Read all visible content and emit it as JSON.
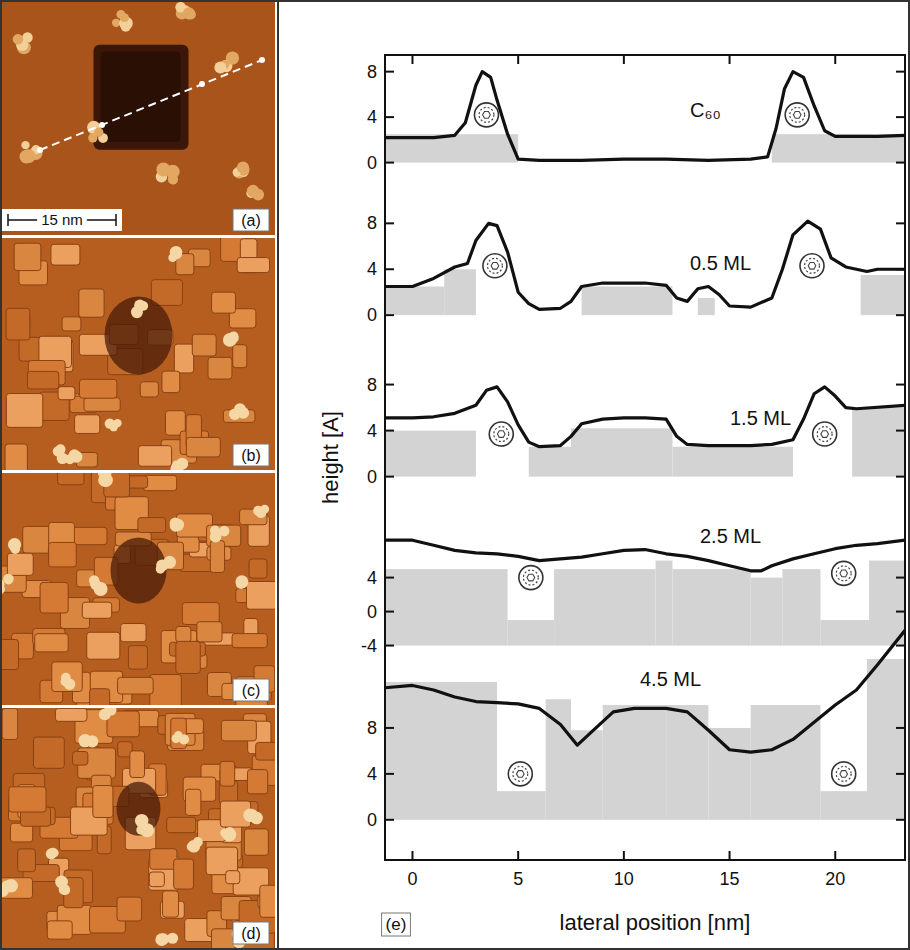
{
  "images": [
    {
      "label": "(a)",
      "scale_bar": "15 nm"
    },
    {
      "label": "(b)"
    },
    {
      "label": "(c)"
    },
    {
      "label": "(d)"
    }
  ],
  "ylabel": "height [A]",
  "panel_label": "(e)",
  "chart_data": [
    {
      "type": "line",
      "title": "C₆₀",
      "color": "#111111",
      "tick_labels": "y",
      "xlim": [
        -1.3,
        23.3
      ],
      "ylim": [
        -2.5,
        9.2
      ],
      "yticks": [
        0,
        4,
        8
      ],
      "x": [
        -1.3,
        0,
        1,
        2,
        2.5,
        3,
        3.3,
        3.7,
        4,
        4.5,
        5,
        6,
        8,
        10,
        12,
        14,
        16,
        16.8,
        17.2,
        17.6,
        18,
        18.5,
        19,
        19.5,
        20,
        22,
        23.3
      ],
      "values": [
        2.2,
        2.2,
        2.2,
        2.4,
        3.5,
        6.8,
        8,
        7.5,
        5.5,
        2.5,
        0.3,
        0.2,
        0.2,
        0.3,
        0.3,
        0.2,
        0.3,
        0.5,
        3,
        6.5,
        8,
        7.5,
        5,
        2.8,
        2.3,
        2.3,
        2.4
      ],
      "layers": {
        "edges": [
          -1.3,
          5,
          17,
          23.3
        ],
        "heights": [
          2.5,
          0,
          2.5
        ],
        "base": 0
      },
      "molecules": {
        "x": [
          3.5,
          18.2
        ],
        "y": [
          4.2,
          4.2
        ]
      }
    },
    {
      "type": "line",
      "title": "0.5 ML",
      "color": "#111111",
      "tick_labels": "y",
      "xlim": [
        -1.3,
        23.3
      ],
      "ylim": [
        -2.6,
        9.6
      ],
      "yticks": [
        0,
        4,
        8
      ],
      "x": [
        -1.3,
        0,
        1,
        2,
        2.6,
        3,
        3.6,
        4,
        4.5,
        5,
        5.5,
        6,
        7,
        7.5,
        8,
        9,
        10,
        11,
        12,
        12.5,
        13,
        13.5,
        14,
        14.5,
        15,
        16,
        17,
        17.5,
        18,
        18.7,
        19.3,
        19.8,
        20.5,
        21.5,
        22,
        23.3
      ],
      "values": [
        2.5,
        2.5,
        3.2,
        4.2,
        4.5,
        6.5,
        8,
        7.8,
        5.5,
        2,
        1,
        0.5,
        0.6,
        1.2,
        2.5,
        2.8,
        2.8,
        2.8,
        2.6,
        1.5,
        1.2,
        2.3,
        2.5,
        1.8,
        0.8,
        0.7,
        1.5,
        4,
        7,
        8.2,
        7.5,
        5,
        4.2,
        3.8,
        4,
        4
      ],
      "layers": {
        "edges": [
          -1.3,
          1.5,
          3,
          8,
          12.3,
          13.5,
          14.3,
          21.2,
          23.3
        ],
        "heights": [
          2.5,
          4,
          0,
          2.5,
          0,
          1.5,
          0,
          3.5
        ],
        "base": 0
      },
      "molecules": {
        "x": [
          3.9,
          18.9
        ],
        "y": [
          4.3,
          4.3
        ]
      }
    },
    {
      "type": "line",
      "title": "1.5 ML",
      "color": "#111111",
      "tick_labels": "y",
      "xlim": [
        -1.3,
        23.3
      ],
      "ylim": [
        -2.9,
        9.7
      ],
      "yticks": [
        0,
        4,
        8
      ],
      "x": [
        -1.3,
        0,
        1,
        2,
        3,
        3.5,
        4,
        4.5,
        5,
        5.5,
        6,
        7,
        7.5,
        8,
        9,
        10,
        11,
        12,
        12.5,
        13,
        14,
        16,
        17,
        18,
        18.5,
        19,
        19.5,
        20,
        20.5,
        21,
        23.3
      ],
      "values": [
        5.1,
        5.1,
        5.2,
        5.5,
        6.2,
        7.5,
        7.8,
        6.5,
        4.5,
        3,
        2.6,
        2.7,
        3.5,
        4.6,
        5,
        5.1,
        5.1,
        5,
        3.5,
        2.8,
        2.7,
        2.7,
        2.8,
        3.2,
        5,
        7.2,
        7.8,
        7,
        6,
        5.9,
        6.2
      ],
      "layers": {
        "edges": [
          -1.3,
          3,
          5.5,
          7.5,
          12.3,
          18,
          20.8,
          23.3
        ],
        "heights": [
          4,
          0,
          2.6,
          4.2,
          2.6,
          0,
          6
        ],
        "base": 0
      },
      "molecules": {
        "x": [
          4.2,
          19.5
        ],
        "y": [
          3.7,
          3.7
        ]
      }
    },
    {
      "type": "line",
      "title": "2.5 ML",
      "color": "#111111",
      "tick_labels": "y",
      "xlim": [
        -1.3,
        23.3
      ],
      "ylim": [
        -5.7,
        9.6
      ],
      "yticks": [
        -4,
        0,
        4
      ],
      "x": [
        -1.3,
        0,
        1,
        2,
        3,
        4,
        5,
        6,
        7,
        8,
        9,
        10,
        11,
        12,
        13,
        14,
        15,
        16,
        16.5,
        17,
        18,
        19,
        20,
        21,
        22,
        23.3
      ],
      "values": [
        8.4,
        8.4,
        7.8,
        7.2,
        6.9,
        6.8,
        6.5,
        6,
        6.2,
        6.4,
        6.8,
        7.2,
        7.3,
        6.8,
        6.5,
        6,
        5.4,
        4.8,
        4.8,
        5.4,
        6.2,
        6.8,
        7.4,
        7.8,
        8,
        8.4
      ],
      "layers": {
        "edges": [
          -1.3,
          4.5,
          6.7,
          11.5,
          12.3,
          14.5,
          16,
          17.5,
          19.3,
          21.6,
          23.3
        ],
        "heights": [
          5,
          -1,
          5,
          6,
          5,
          5,
          4,
          5,
          -1,
          6
        ],
        "base": -4
      },
      "molecules": {
        "x": [
          5.6,
          20.4
        ],
        "y": [
          4,
          4.5
        ]
      }
    },
    {
      "type": "line",
      "title": "4.5 ML",
      "color": "#111111",
      "xlabel": "lateral position [nm]",
      "xlim": [
        -1.3,
        23.3
      ],
      "ylim": [
        -3.5,
        17.4
      ],
      "yticks": [
        0,
        4,
        8
      ],
      "xticks": [
        0,
        5,
        10,
        15,
        20
      ],
      "x": [
        -1.3,
        0,
        1,
        2,
        3,
        4,
        5,
        6,
        7,
        7.8,
        8.5,
        9.5,
        10.5,
        12,
        13,
        14,
        15,
        16,
        17,
        18,
        19,
        20,
        21,
        22,
        23.3
      ],
      "values": [
        11.5,
        11.7,
        11.3,
        10.7,
        10.3,
        10.2,
        10.1,
        9.7,
        8.3,
        6.5,
        7.7,
        9.4,
        9.7,
        9.7,
        9.4,
        7.8,
        6.1,
        5.9,
        6.1,
        7,
        8.5,
        10,
        11.3,
        13.5,
        16.5
      ],
      "layers": {
        "edges": [
          -1.3,
          4,
          6.3,
          7.5,
          9,
          12,
          14,
          16,
          19.3,
          21.5,
          23.3
        ],
        "heights": [
          12,
          2.5,
          10.5,
          7.8,
          10,
          10,
          8,
          10,
          2.5,
          14
        ],
        "base": 0
      },
      "molecules": {
        "x": [
          5.1,
          20.4
        ],
        "y": [
          4,
          4
        ]
      }
    }
  ]
}
